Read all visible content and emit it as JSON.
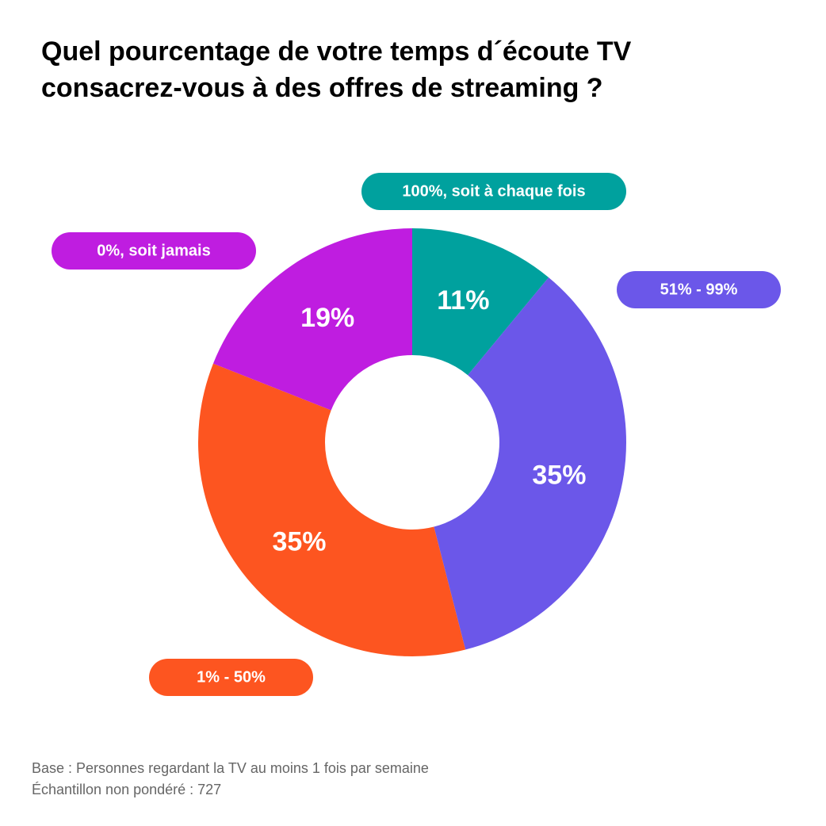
{
  "chart_data": {
    "type": "donut",
    "title": "Quel pourcentage de votre temps d´écoute TV consacrez-vous à des offres de streaming ?",
    "categories": [
      "100%, soit à chaque fois",
      "51% - 99%",
      "1% - 50%",
      "0%, soit jamais"
    ],
    "values": [
      11,
      35,
      35,
      19
    ],
    "value_labels": [
      "11%",
      "35%",
      "35%",
      "19%"
    ],
    "colors": [
      "#00a19e",
      "#6b57e9",
      "#fd5520",
      "#bf1de0"
    ],
    "notes": [
      "Base : Personnes regardant la TV au moins 1 fois par semaine",
      "Échantillon non pondéré : 727"
    ]
  }
}
